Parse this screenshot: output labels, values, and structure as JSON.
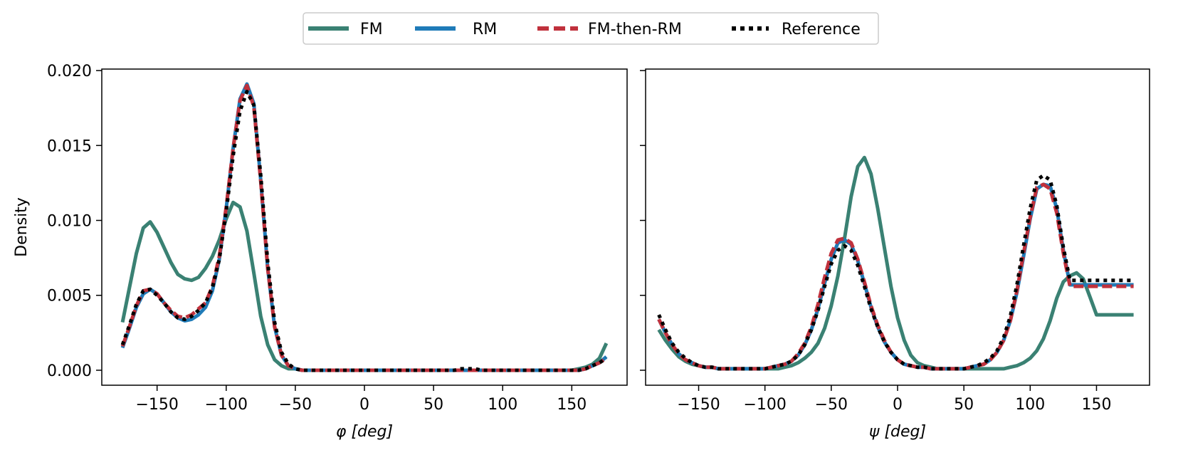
{
  "colors": {
    "fm": "#3a8173",
    "rm": "#1f7bb8",
    "fm_then_rm": "#c0313c",
    "reference": "#000000"
  },
  "legend": {
    "placement": "top-center",
    "entries": [
      {
        "key": "fm",
        "label": "FM",
        "style": "solid"
      },
      {
        "key": "rm",
        "label": "RM",
        "style": "solid"
      },
      {
        "key": "fm_then_rm",
        "label": "FM-then-RM",
        "style": "dashed"
      },
      {
        "key": "reference",
        "label": "Reference",
        "style": "dotted"
      }
    ]
  },
  "chart_data": [
    {
      "type": "line",
      "xlabel_symbol": "φ",
      "xlabel_unit": "[deg]",
      "ylabel": "Density",
      "xlim": [
        -190,
        190
      ],
      "ylim": [
        -0.001,
        0.0201
      ],
      "xticks": [
        -150,
        -100,
        -50,
        0,
        50,
        100,
        150
      ],
      "xtick_labels": [
        "−150",
        "−100",
        "−50",
        "0",
        "50",
        "100",
        "150"
      ],
      "yticks": [
        0.0,
        0.005,
        0.01,
        0.015,
        0.02
      ],
      "ytick_labels": [
        "0.000",
        "0.005",
        "0.010",
        "0.015",
        "0.020"
      ],
      "grid": false,
      "x": [
        -175,
        -170,
        -165,
        -160,
        -155,
        -150,
        -145,
        -140,
        -135,
        -130,
        -125,
        -120,
        -115,
        -110,
        -105,
        -100,
        -95,
        -90,
        -85,
        -80,
        -75,
        -70,
        -65,
        -60,
        -55,
        -50,
        -45,
        -40,
        -35,
        -30,
        -25,
        -20,
        -15,
        -10,
        -5,
        0,
        5,
        10,
        15,
        20,
        25,
        30,
        35,
        40,
        45,
        50,
        55,
        60,
        65,
        70,
        75,
        80,
        85,
        90,
        95,
        100,
        105,
        110,
        115,
        120,
        125,
        130,
        135,
        140,
        145,
        150,
        155,
        160,
        165,
        170,
        175
      ],
      "series": [
        {
          "key": "fm",
          "values": [
            0.0032,
            0.0055,
            0.0078,
            0.0095,
            0.0099,
            0.0092,
            0.0082,
            0.0072,
            0.0064,
            0.0061,
            0.006,
            0.0062,
            0.0068,
            0.0076,
            0.0087,
            0.0101,
            0.0112,
            0.0109,
            0.0093,
            0.0065,
            0.0036,
            0.0017,
            0.0007,
            0.0003,
            0.0001,
            0.0001,
            0,
            0,
            0,
            0,
            0,
            0,
            0,
            0,
            0,
            0,
            0,
            0,
            0,
            0,
            0,
            0,
            0,
            0,
            0,
            0,
            0,
            0,
            0,
            0,
            0,
            0,
            0,
            0,
            0,
            0,
            0,
            0,
            0,
            0,
            0,
            0,
            0,
            0,
            0,
            0,
            0.0001,
            0.0002,
            0.0004,
            0.0008,
            0.0018
          ]
        },
        {
          "key": "rm",
          "values": [
            0.0015,
            0.0028,
            0.0042,
            0.0051,
            0.0054,
            0.0051,
            0.0045,
            0.0039,
            0.0035,
            0.0033,
            0.0034,
            0.0037,
            0.0042,
            0.0053,
            0.0074,
            0.0108,
            0.0148,
            0.0181,
            0.0191,
            0.0178,
            0.0127,
            0.0068,
            0.0029,
            0.001,
            0.0003,
            0.0001,
            0,
            0,
            0,
            0,
            0,
            0,
            0,
            0,
            0,
            0,
            0,
            0,
            0,
            0,
            0,
            0,
            0,
            0,
            0,
            0,
            0,
            0,
            0,
            0,
            0,
            0,
            0,
            0,
            0,
            0,
            0,
            0,
            0,
            0,
            0,
            0,
            0,
            0,
            0,
            0,
            0,
            0.0001,
            0.0003,
            0.0005,
            0.0009
          ]
        },
        {
          "key": "fm_then_rm",
          "values": [
            0.0016,
            0.0029,
            0.0043,
            0.0053,
            0.0054,
            0.0051,
            0.0045,
            0.004,
            0.0036,
            0.0035,
            0.0037,
            0.0041,
            0.0045,
            0.0056,
            0.0076,
            0.0109,
            0.0148,
            0.018,
            0.019,
            0.0176,
            0.0126,
            0.0068,
            0.0029,
            0.001,
            0.0003,
            0.0001,
            0,
            0,
            0,
            0,
            0,
            0,
            0,
            0,
            0,
            0,
            0,
            0,
            0,
            0,
            0,
            0,
            0,
            0,
            0,
            0,
            0,
            0,
            0,
            0,
            0,
            0,
            0,
            0,
            0,
            0,
            0,
            0,
            0,
            0,
            0,
            0,
            0,
            0,
            0,
            0,
            0,
            0.0001,
            0.0003,
            0.0005,
            0.0008
          ]
        },
        {
          "key": "reference",
          "values": [
            0.0017,
            0.003,
            0.0044,
            0.0053,
            0.0054,
            0.005,
            0.0045,
            0.0039,
            0.0035,
            0.0034,
            0.0036,
            0.004,
            0.0045,
            0.0055,
            0.0074,
            0.0106,
            0.0143,
            0.0173,
            0.0186,
            0.0177,
            0.013,
            0.0072,
            0.0032,
            0.0012,
            0.0004,
            0.0001,
            0,
            0,
            0,
            0,
            0,
            0,
            0,
            0,
            0,
            0,
            0,
            0,
            0,
            0,
            0,
            0,
            0,
            0,
            0,
            0,
            0,
            0,
            0,
            0.0001,
            0.0001,
            0.0001,
            0,
            0,
            0,
            0,
            0,
            0,
            0,
            0,
            0,
            0,
            0,
            0,
            0,
            0,
            0,
            0.0001,
            0.0003,
            0.0005,
            0.0008
          ]
        }
      ]
    },
    {
      "type": "line",
      "xlabel_symbol": "ψ",
      "xlabel_unit": "[deg]",
      "ylabel": "",
      "xlim": [
        -190,
        190
      ],
      "ylim": [
        -0.001,
        0.0201
      ],
      "xticks": [
        -150,
        -100,
        -50,
        0,
        50,
        100,
        150
      ],
      "xtick_labels": [
        "−150",
        "−100",
        "−50",
        "0",
        "50",
        "100",
        "150"
      ],
      "yticks": [
        0.0,
        0.005,
        0.01,
        0.015,
        0.02
      ],
      "ytick_labels": [
        "",
        "",
        "",
        "",
        ""
      ],
      "grid": false,
      "x": [
        -180,
        -175,
        -170,
        -165,
        -160,
        -155,
        -150,
        -145,
        -140,
        -135,
        -130,
        -125,
        -120,
        -115,
        -110,
        -105,
        -100,
        -95,
        -90,
        -85,
        -80,
        -75,
        -70,
        -65,
        -60,
        -55,
        -50,
        -45,
        -40,
        -35,
        -30,
        -25,
        -20,
        -15,
        -10,
        -5,
        0,
        5,
        10,
        15,
        20,
        25,
        30,
        35,
        40,
        45,
        50,
        55,
        60,
        65,
        70,
        75,
        80,
        85,
        90,
        95,
        100,
        105,
        110,
        115,
        120,
        125,
        130,
        135,
        140,
        145,
        150,
        155,
        160,
        165,
        170,
        175,
        178
      ],
      "series": [
        {
          "key": "fm",
          "values": [
            0.0027,
            0.002,
            0.0014,
            0.0009,
            0.0006,
            0.0004,
            0.0003,
            0.0002,
            0.0002,
            0.0001,
            0.0001,
            0.0001,
            0.0001,
            0.0001,
            0.0001,
            0.0001,
            0.0001,
            0.0001,
            0.0001,
            0.0002,
            0.0003,
            0.0005,
            0.0008,
            0.0012,
            0.0018,
            0.0028,
            0.0043,
            0.0063,
            0.0088,
            0.0116,
            0.0136,
            0.0142,
            0.0131,
            0.0108,
            0.0082,
            0.0056,
            0.0035,
            0.002,
            0.001,
            0.0005,
            0.0003,
            0.0002,
            0.0001,
            0.0001,
            0.0001,
            0.0001,
            0.0001,
            0.0001,
            0.0001,
            0.0001,
            0.0001,
            0.0001,
            0.0001,
            0.0002,
            0.0003,
            0.0005,
            0.0008,
            0.0013,
            0.0021,
            0.0033,
            0.0048,
            0.0059,
            0.0063,
            0.0065,
            0.0061,
            0.0049,
            0.0037,
            0.0037,
            0.0037,
            0.0037,
            0.0037,
            0.0037,
            0.0037
          ]
        },
        {
          "key": "rm",
          "values": [
            0.0034,
            0.0025,
            0.0017,
            0.0011,
            0.0007,
            0.0005,
            0.0003,
            0.0002,
            0.0002,
            0.0001,
            0.0001,
            0.0001,
            0.0001,
            0.0001,
            0.0001,
            0.0001,
            0.0001,
            0.0002,
            0.0003,
            0.0004,
            0.0006,
            0.001,
            0.0017,
            0.0027,
            0.0041,
            0.0058,
            0.0074,
            0.0085,
            0.0087,
            0.0084,
            0.0073,
            0.0058,
            0.0042,
            0.0029,
            0.0019,
            0.0012,
            0.0007,
            0.0004,
            0.0003,
            0.0002,
            0.0002,
            0.0001,
            0.0001,
            0.0001,
            0.0001,
            0.0001,
            0.0001,
            0.0002,
            0.0003,
            0.0004,
            0.0007,
            0.0012,
            0.002,
            0.0033,
            0.0052,
            0.0076,
            0.0101,
            0.0121,
            0.0124,
            0.0123,
            0.0108,
            0.008,
            0.0057,
            0.0057,
            0.0057,
            0.0057,
            0.0057,
            0.0057,
            0.0057,
            0.0057,
            0.0057,
            0.0057,
            0.0057
          ]
        },
        {
          "key": "fm_then_rm",
          "values": [
            0.0034,
            0.0025,
            0.0017,
            0.0011,
            0.0007,
            0.0005,
            0.0003,
            0.0002,
            0.0002,
            0.0001,
            0.0001,
            0.0001,
            0.0001,
            0.0001,
            0.0001,
            0.0001,
            0.0001,
            0.0002,
            0.0003,
            0.0004,
            0.0006,
            0.0011,
            0.0018,
            0.0029,
            0.0044,
            0.0062,
            0.0078,
            0.0087,
            0.0088,
            0.0085,
            0.0074,
            0.0059,
            0.0043,
            0.003,
            0.002,
            0.0012,
            0.0007,
            0.0004,
            0.0003,
            0.0002,
            0.0002,
            0.0001,
            0.0001,
            0.0001,
            0.0001,
            0.0001,
            0.0001,
            0.0002,
            0.0003,
            0.0004,
            0.0007,
            0.0012,
            0.002,
            0.0033,
            0.0053,
            0.0078,
            0.0102,
            0.0122,
            0.0124,
            0.0121,
            0.0105,
            0.0078,
            0.0056,
            0.0056,
            0.0056,
            0.0056,
            0.0056,
            0.0056,
            0.0056,
            0.0056,
            0.0056,
            0.0056,
            0.0056
          ]
        },
        {
          "key": "reference",
          "values": [
            0.0037,
            0.0027,
            0.0018,
            0.0012,
            0.0008,
            0.0005,
            0.0003,
            0.0002,
            0.0002,
            0.0001,
            0.0001,
            0.0001,
            0.0001,
            0.0001,
            0.0001,
            0.0001,
            0.0001,
            0.0002,
            0.0003,
            0.0004,
            0.0006,
            0.001,
            0.0017,
            0.0027,
            0.004,
            0.0056,
            0.0071,
            0.008,
            0.0083,
            0.008,
            0.007,
            0.0056,
            0.0041,
            0.0029,
            0.0019,
            0.0012,
            0.0007,
            0.0004,
            0.0003,
            0.0002,
            0.0002,
            0.0001,
            0.0001,
            0.0001,
            0.0001,
            0.0001,
            0.0001,
            0.0002,
            0.0003,
            0.0005,
            0.0008,
            0.0013,
            0.0022,
            0.0036,
            0.0057,
            0.0083,
            0.0108,
            0.0127,
            0.013,
            0.0127,
            0.011,
            0.0082,
            0.006,
            0.006,
            0.006,
            0.006,
            0.006,
            0.006,
            0.006,
            0.006,
            0.006,
            0.006,
            0.006
          ]
        }
      ]
    }
  ]
}
